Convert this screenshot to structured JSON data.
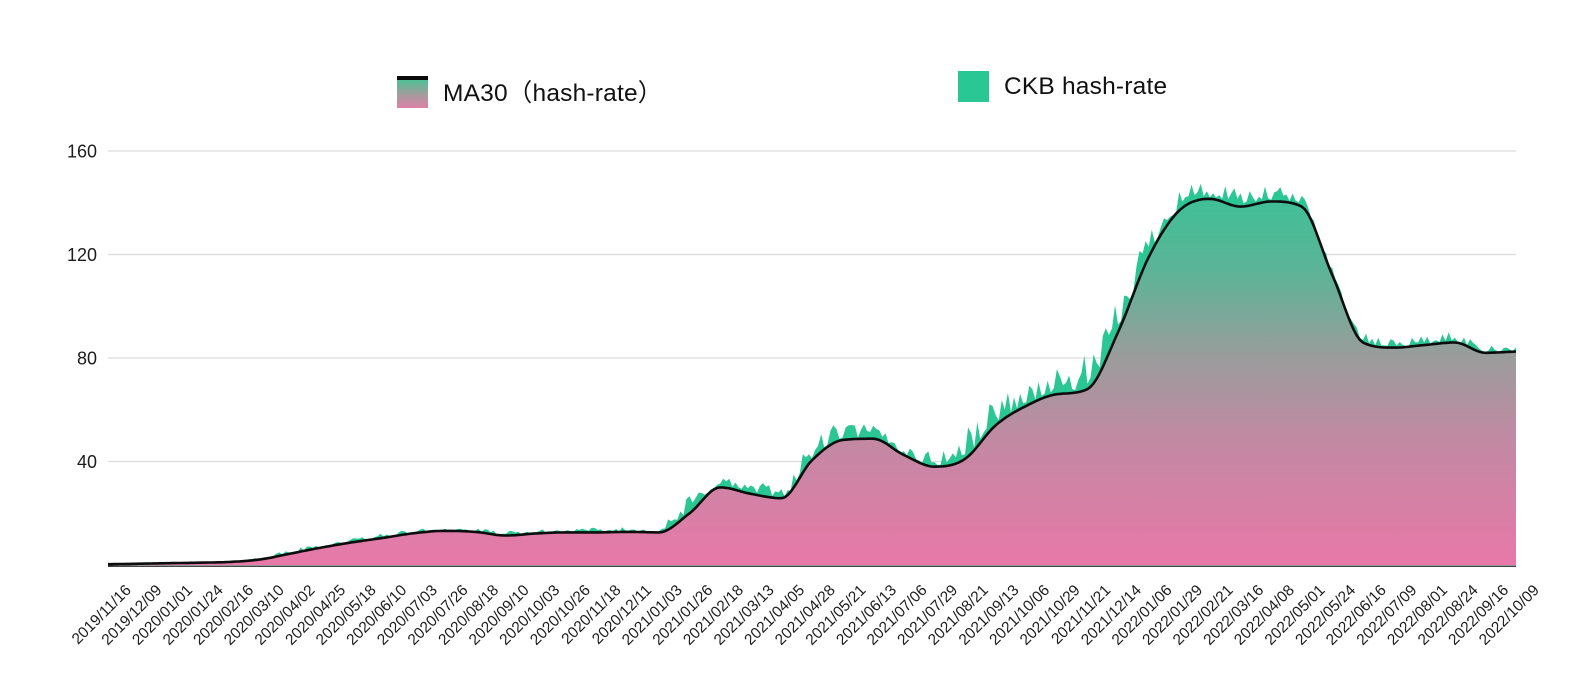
{
  "legend": {
    "items": [
      {
        "label": "MA30（hash-rate）",
        "swatch": "gradient-green-pink"
      },
      {
        "label": "CKB hash-rate",
        "swatch": "solid-green"
      }
    ]
  },
  "colors": {
    "ckb_green": "#2ac795",
    "gradient_top_green": "#2cc795",
    "gradient_mid_grey": "#9b9c9c",
    "gradient_bottom_pink": "#e878a8",
    "ma_line_black": "#0d0d0d",
    "grid_grey": "#dcdcdc",
    "axis_line": "#2b2b2b",
    "label_text": "#1c1c1c"
  },
  "chart_data": {
    "type": "area",
    "title": "",
    "xlabel": "",
    "ylabel": "",
    "ylim": [
      0,
      160
    ],
    "yticks": [
      40,
      80,
      120,
      160
    ],
    "grid": true,
    "legend_position": "top",
    "x": [
      "2019/11/16",
      "2019/12/09",
      "2020/01/01",
      "2020/01/24",
      "2020/02/16",
      "2020/03/10",
      "2020/04/02",
      "2020/04/25",
      "2020/05/18",
      "2020/06/10",
      "2020/07/03",
      "2020/07/26",
      "2020/08/18",
      "2020/09/10",
      "2020/10/03",
      "2020/10/26",
      "2020/11/18",
      "2020/12/11",
      "2021/01/03",
      "2021/01/26",
      "2021/02/18",
      "2021/03/13",
      "2021/04/05",
      "2021/04/28",
      "2021/05/21",
      "2021/06/13",
      "2021/07/06",
      "2021/07/29",
      "2021/08/21",
      "2021/09/13",
      "2021/10/06",
      "2021/10/29",
      "2021/11/21",
      "2021/12/14",
      "2022/01/06",
      "2022/01/29",
      "2022/02/21",
      "2022/03/16",
      "2022/04/08",
      "2022/05/01",
      "2022/05/24",
      "2022/06/16",
      "2022/07/09",
      "2022/08/01",
      "2022/08/24",
      "2022/09/16",
      "2022/10/09"
    ],
    "series": [
      {
        "name": "MA30（hash-rate）",
        "style": "smooth-line-black-over-gradient-area",
        "values": [
          0.3,
          0.5,
          0.7,
          0.9,
          1.2,
          2.2,
          4.5,
          6.8,
          8.8,
          10.5,
          12.3,
          13.2,
          12.8,
          11.4,
          12.2,
          12.6,
          12.6,
          12.8,
          12.6,
          20,
          30,
          27.5,
          25.8,
          40.5,
          48.3,
          48.8,
          42.5,
          38,
          41,
          54,
          61.5,
          66,
          68,
          90,
          119,
          137,
          141.5,
          138.5,
          140.5,
          138.5,
          112,
          86,
          84,
          85,
          86,
          82,
          82.5
        ]
      },
      {
        "name": "CKB hash-rate",
        "style": "jagged-solid-green-area",
        "values": [
          0.5,
          0.7,
          0.9,
          1.1,
          1.5,
          2.9,
          5.5,
          7.9,
          9.9,
          11.6,
          13.2,
          14.1,
          13.7,
          12.5,
          13.1,
          13.5,
          13.7,
          14,
          14.1,
          24.8,
          33,
          30.5,
          29.4,
          45.3,
          52.5,
          52.4,
          45.5,
          41.6,
          48.2,
          61.2,
          66.9,
          72,
          76.4,
          97.8,
          126.8,
          143.6,
          145.1,
          142.7,
          144.1,
          141.5,
          114.4,
          88.4,
          86.4,
          87.4,
          88.4,
          84.4,
          84.9
        ],
        "spike_amplitude": [
          0.4,
          0.4,
          0.4,
          0.4,
          0.5,
          1.2,
          1.6,
          1.8,
          1.8,
          1.8,
          1.5,
          1.5,
          1.5,
          1.8,
          1.5,
          1.5,
          1.8,
          2,
          2.5,
          8,
          5,
          5,
          6,
          8,
          7,
          6,
          5,
          6,
          12,
          12,
          9,
          10,
          14,
          13,
          13,
          11,
          6,
          7,
          6,
          5,
          4,
          4,
          4,
          4,
          4,
          4,
          4
        ]
      }
    ]
  }
}
